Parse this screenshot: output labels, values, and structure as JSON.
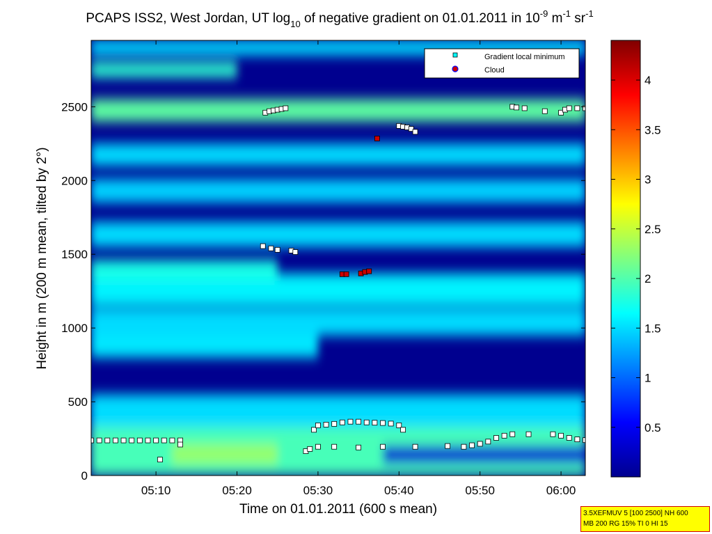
{
  "title": {
    "main": "PCAPS ISS2, West Jordan, UT log",
    "sub10": "10",
    "rest": " of negative gradient on 01.01.2011 in 10",
    "sup_m9": "-9",
    "unit_m": " m",
    "sup_m1a": "-1",
    "unit_sr": " sr",
    "sup_m1b": "-1"
  },
  "xlabel": "Time on 01.01.2011 (600 s mean)",
  "ylabel": "Height in m (200 m mean, tilted by 2°)",
  "legend": {
    "minimum_label": "Gradient local minimum",
    "cloud_label": "Cloud"
  },
  "info_box": {
    "line1": "3.5XEFMUV 5 [100 2500] NH 600",
    "line2": "MB 200 RG 15% TI 0 HI 15"
  },
  "colors": {
    "background_dark": "#00008f",
    "minimum_marker": "#00ffff",
    "cloud_marker": "#cc0000",
    "cloud_marker_edge": "#0000ff"
  },
  "chart_data": {
    "type": "heatmap",
    "colormap": "jet",
    "x_unit": "minutes after 05:00",
    "xlim": [
      2,
      63
    ],
    "ylim": [
      0,
      2950
    ],
    "clim": [
      0,
      4.4
    ],
    "x_ticks": [
      {
        "value": 10,
        "label": "05:10"
      },
      {
        "value": 20,
        "label": "05:20"
      },
      {
        "value": 30,
        "label": "05:30"
      },
      {
        "value": 40,
        "label": "05:40"
      },
      {
        "value": 50,
        "label": "05:50"
      },
      {
        "value": 60,
        "label": "06:00"
      }
    ],
    "y_ticks": [
      0,
      500,
      1000,
      1500,
      2000,
      2500
    ],
    "y_tick_labels": [
      "0",
      "500",
      "1000",
      "1500",
      "2000",
      "2500"
    ],
    "colorbar_ticks": [
      0.5,
      1,
      1.5,
      2,
      2.5,
      3,
      3.5,
      4
    ],
    "colorbar_tick_labels": [
      "0.5",
      "1",
      "1.5",
      "2",
      "2.5",
      "3",
      "3.5",
      "4"
    ],
    "background_field": {
      "baseline_value": 0.4,
      "layers": [
        {
          "y": 0,
          "thick": 400,
          "value": 1.95
        },
        {
          "y": 80,
          "thick": 130,
          "value": 2.3,
          "x_from": 12,
          "x_to": 25
        },
        {
          "y": 80,
          "thick": 120,
          "value": 0.35,
          "x_from": 38,
          "x_to": 63
        },
        {
          "y": 330,
          "thick": 220,
          "value": 1.5
        },
        {
          "y": 800,
          "thick": 250,
          "value": 1.55,
          "x_from": 2,
          "x_to": 30
        },
        {
          "y": 950,
          "thick": 180,
          "value": 1.5
        },
        {
          "y": 1150,
          "thick": 220,
          "value": 1.6
        },
        {
          "y": 1320,
          "thick": 140,
          "value": 1.75,
          "x_from": 2,
          "x_to": 25
        },
        {
          "y": 1550,
          "thick": 170,
          "value": 1.5
        },
        {
          "y": 1850,
          "thick": 160,
          "value": 1.45
        },
        {
          "y": 2100,
          "thick": 150,
          "value": 1.5
        },
        {
          "y": 2400,
          "thick": 150,
          "value": 2.05
        },
        {
          "y": 2700,
          "thick": 100,
          "value": 1.85,
          "x_from": 2,
          "x_to": 20
        },
        {
          "y": 2850,
          "thick": 100,
          "value": 1.5
        }
      ]
    },
    "series": [
      {
        "name": "Gradient local minimum",
        "marker": "square",
        "points": [
          [
            2,
            238
          ],
          [
            3,
            238
          ],
          [
            4,
            238
          ],
          [
            5,
            238
          ],
          [
            6,
            238
          ],
          [
            7,
            238
          ],
          [
            8,
            238
          ],
          [
            9,
            238
          ],
          [
            10,
            238
          ],
          [
            11,
            238
          ],
          [
            12,
            238
          ],
          [
            13,
            238
          ],
          [
            13,
            210
          ],
          [
            10.5,
            108
          ],
          [
            23.5,
            2460
          ],
          [
            24,
            2470
          ],
          [
            24.5,
            2475
          ],
          [
            25,
            2480
          ],
          [
            25.5,
            2485
          ],
          [
            26,
            2490
          ],
          [
            40,
            2370
          ],
          [
            40.5,
            2365
          ],
          [
            41,
            2360
          ],
          [
            41.5,
            2350
          ],
          [
            42,
            2330
          ],
          [
            54,
            2500
          ],
          [
            54.5,
            2495
          ],
          [
            55.5,
            2490
          ],
          [
            58,
            2470
          ],
          [
            60,
            2460
          ],
          [
            60.5,
            2480
          ],
          [
            61,
            2490
          ],
          [
            62,
            2490
          ],
          [
            63,
            2490
          ],
          [
            23.2,
            1555
          ],
          [
            24.2,
            1540
          ],
          [
            25,
            1530
          ],
          [
            26.7,
            1525
          ],
          [
            27.2,
            1515
          ],
          [
            29.5,
            310
          ],
          [
            30,
            340
          ],
          [
            31,
            345
          ],
          [
            32,
            350
          ],
          [
            33,
            360
          ],
          [
            34,
            365
          ],
          [
            35,
            365
          ],
          [
            36,
            360
          ],
          [
            37,
            358
          ],
          [
            38,
            356
          ],
          [
            39,
            352
          ],
          [
            40,
            340
          ],
          [
            40.5,
            310
          ],
          [
            28.5,
            165
          ],
          [
            29,
            180
          ],
          [
            30,
            195
          ],
          [
            32,
            195
          ],
          [
            35,
            190
          ],
          [
            38,
            195
          ],
          [
            42,
            195
          ],
          [
            46,
            200
          ],
          [
            48,
            195
          ],
          [
            49,
            205
          ],
          [
            50,
            215
          ],
          [
            51,
            230
          ],
          [
            52,
            255
          ],
          [
            53,
            270
          ],
          [
            54,
            280
          ],
          [
            56,
            280
          ],
          [
            59,
            280
          ],
          [
            60,
            270
          ],
          [
            61,
            255
          ],
          [
            62,
            245
          ],
          [
            63,
            240
          ]
        ]
      },
      {
        "name": "Cloud",
        "marker": "square",
        "points": [
          [
            33,
            1365
          ],
          [
            33.5,
            1365
          ],
          [
            35.3,
            1370
          ],
          [
            35.8,
            1380
          ],
          [
            36.3,
            1385
          ],
          [
            37.3,
            2285
          ]
        ]
      }
    ]
  }
}
